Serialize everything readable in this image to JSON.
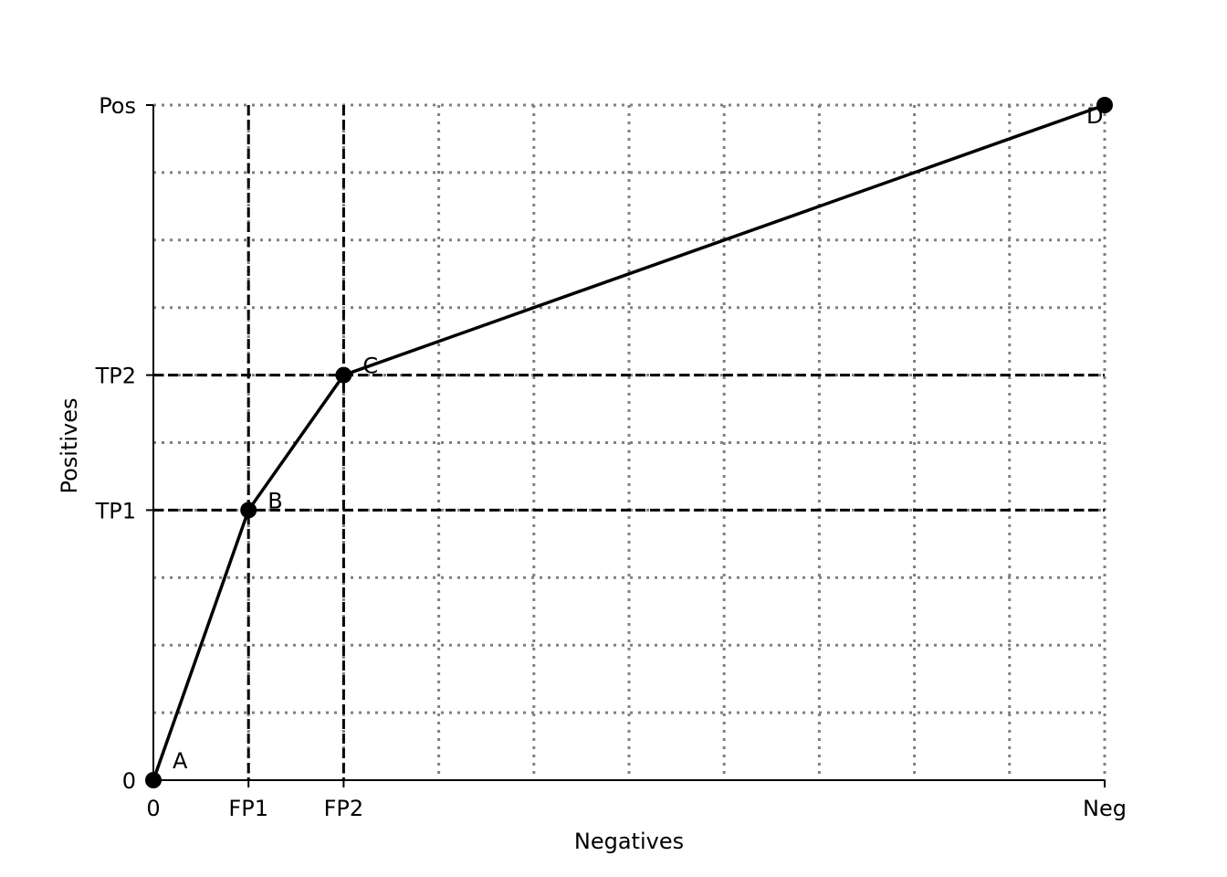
{
  "chart_data": {
    "type": "line",
    "xlabel": "Negatives",
    "ylabel": "Positives",
    "xlim": [
      0,
      10
    ],
    "ylim": [
      0,
      10
    ],
    "x_ticks": [
      {
        "value": 0,
        "label": "0"
      },
      {
        "value": 1,
        "label": "FP1"
      },
      {
        "value": 2,
        "label": "FP2"
      },
      {
        "value": 10,
        "label": "Neg"
      }
    ],
    "y_ticks": [
      {
        "value": 0,
        "label": "0"
      },
      {
        "value": 4,
        "label": "TP1"
      },
      {
        "value": 6,
        "label": "TP2"
      },
      {
        "value": 10,
        "label": "Pos"
      }
    ],
    "grid": {
      "style": "dotted",
      "x": [
        1,
        2,
        3,
        4,
        5,
        6,
        7,
        8,
        9,
        10
      ],
      "y": [
        1,
        2,
        3,
        4,
        5,
        6,
        7,
        8,
        9,
        10
      ]
    },
    "reference_lines": {
      "style": "dashed",
      "x": [
        1,
        2
      ],
      "y": [
        4,
        6
      ]
    },
    "series": [
      {
        "points": [
          {
            "label": "A",
            "x": 0,
            "y": 0
          },
          {
            "label": "B",
            "x": 1,
            "y": 4
          },
          {
            "label": "C",
            "x": 2,
            "y": 6
          },
          {
            "label": "D",
            "x": 10,
            "y": 10
          }
        ]
      }
    ],
    "colors": {
      "line": "#000000",
      "grid": "#808080",
      "reference": "#000000"
    }
  }
}
